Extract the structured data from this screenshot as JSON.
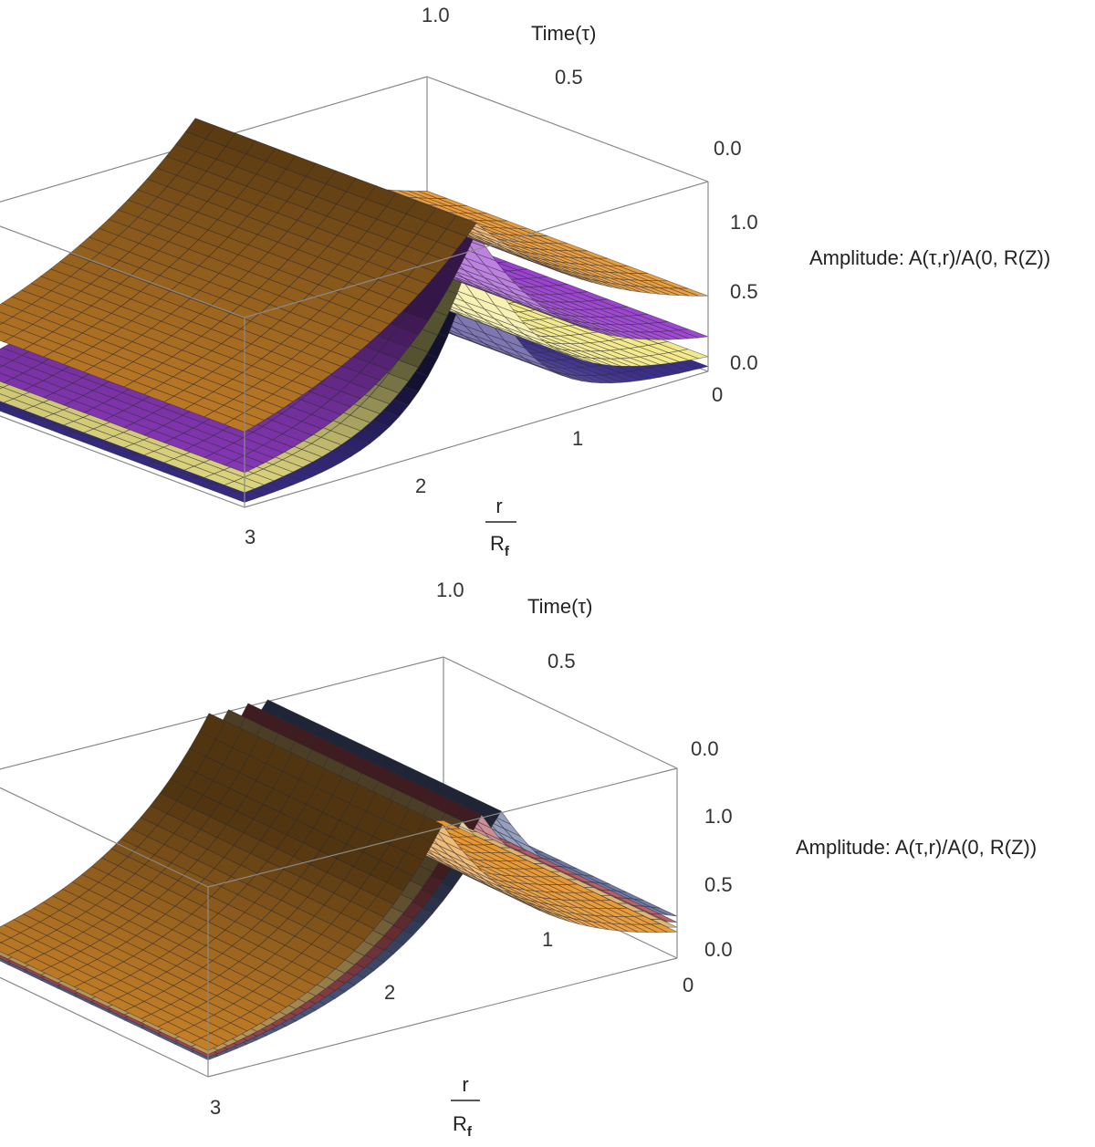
{
  "chart_data": [
    {
      "type": "surface3d",
      "axes": {
        "time": {
          "label": "Time(τ)",
          "ticks": [
            "0.0",
            "0.5",
            "1.0"
          ],
          "range": [
            0,
            1
          ]
        },
        "radius": {
          "label_numerator": "r",
          "label_denominator": "R",
          "label_subscript": "f",
          "ticks": [
            "0",
            "1",
            "2",
            "3"
          ],
          "range": [
            0,
            3
          ]
        },
        "amplitude": {
          "label": "Amplitude: A(τ,r)/A(0, R(Z))",
          "ticks": [
            "0.0",
            "0.5",
            "1.0"
          ],
          "range": [
            0,
            1.3
          ]
        }
      },
      "surfaces": [
        {
          "color": "#e8962e",
          "peak_r": 1.5,
          "amplitude": 1.3,
          "decay": 0.9,
          "floor": 0.18
        },
        {
          "color": "#9a3fd0",
          "peak_r": 1.5,
          "amplitude": 1.3,
          "decay": 1.6,
          "floor": 0.12
        },
        {
          "color": "#f3ea8a",
          "peak_r": 1.5,
          "amplitude": 1.3,
          "decay": 2.3,
          "floor": 0.06
        },
        {
          "color": "#3a2e8a",
          "peak_r": 1.5,
          "amplitude": 1.3,
          "decay": 3.0,
          "floor": 0.02
        }
      ]
    },
    {
      "type": "surface3d",
      "axes": {
        "time": {
          "label": "Time(τ)",
          "ticks": [
            "0.0",
            "0.5",
            "1.0"
          ],
          "range": [
            0,
            1
          ]
        },
        "radius": {
          "label_numerator": "r",
          "label_denominator": "R",
          "label_subscript": "f",
          "ticks": [
            "0",
            "1",
            "2",
            "3"
          ],
          "range": [
            0,
            3
          ]
        },
        "amplitude": {
          "label": "Amplitude: A(τ,r)/A(0, R(Z))",
          "ticks": [
            "0.0",
            "0.5",
            "1.0"
          ],
          "range": [
            0,
            1.3
          ]
        }
      },
      "surfaces": [
        {
          "color": "#e8962e",
          "peak_r": 1.5,
          "amplitude": 1.3,
          "decay": 1.4,
          "floor": 0.02
        },
        {
          "color": "#d8b26a",
          "peak_r": 1.37,
          "amplitude": 1.3,
          "decay": 1.4,
          "floor": 0.02
        },
        {
          "color": "#b0505a",
          "peak_r": 1.25,
          "amplitude": 1.3,
          "decay": 1.4,
          "floor": 0.02
        },
        {
          "color": "#5a6a9a",
          "peak_r": 1.13,
          "amplitude": 1.3,
          "decay": 1.4,
          "floor": 0.02
        }
      ]
    }
  ]
}
